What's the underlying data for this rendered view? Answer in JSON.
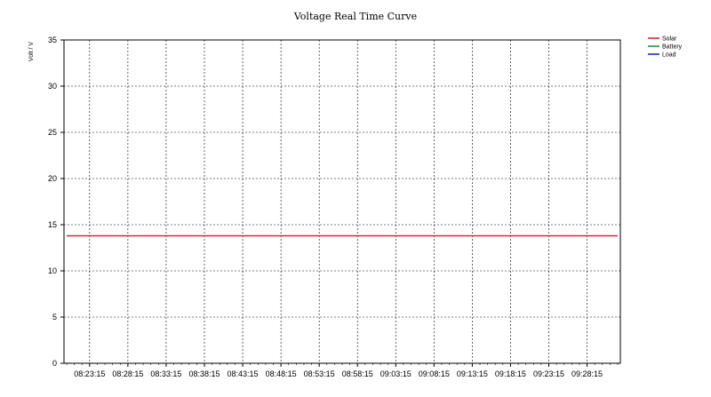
{
  "chart_data": {
    "type": "line",
    "title": "Voltage Real Time Curve",
    "ylabel": "Volt / V",
    "xlabel": "",
    "ylim": [
      0,
      35
    ],
    "y_ticks": [
      0,
      5,
      10,
      15,
      20,
      25,
      30,
      35
    ],
    "x_tick_labels": [
      "08:23:15",
      "08:28:15",
      "08:33:15",
      "08:38:15",
      "08:43:15",
      "08:48:15",
      "08:53:15",
      "08:58:15",
      "09:03:15",
      "09:08:15",
      "09:13:15",
      "09:18:15",
      "09:23:15",
      "09:28:15"
    ],
    "grid": true,
    "legend_position": "top-right",
    "x_start_label": "08:20:15",
    "x_step_seconds": 30,
    "x_points": 145,
    "series": [
      {
        "name": "Solar",
        "color": "#e8262b",
        "values": [
          13.8,
          13.8,
          13.8,
          13.8,
          13.8,
          13.8,
          13.8,
          13.8,
          13.8,
          13.8,
          13.8,
          13.8,
          13.8,
          13.8,
          13.8,
          13.8,
          13.8,
          13.8,
          13.8,
          13.8,
          13.8,
          13.8,
          13.8,
          13.8,
          13.8,
          13.8,
          13.8,
          13.8,
          13.8,
          13.8,
          13.8,
          13.8,
          13.8,
          13.8,
          13.8,
          13.8,
          13.8,
          13.8,
          13.8,
          13.8,
          13.8,
          13.8,
          13.8,
          13.8,
          13.8,
          13.8,
          13.8,
          13.8,
          13.8,
          13.8,
          13.8,
          13.8,
          13.8,
          13.8,
          13.8,
          13.8,
          13.8,
          13.8,
          13.8,
          13.8,
          13.8,
          13.8,
          13.8,
          13.8,
          13.8,
          13.8,
          13.8,
          13.8,
          13.8,
          13.8,
          13.8,
          13.8,
          13.8,
          13.8,
          13.8,
          13.8,
          13.8,
          13.8,
          13.8,
          13.8,
          13.8,
          13.8,
          13.8,
          13.8,
          13.8,
          13.8,
          13.8,
          13.8,
          13.8,
          13.8,
          13.8,
          13.8,
          13.8,
          13.8,
          13.8,
          13.8,
          13.8,
          13.8,
          13.8,
          13.8,
          13.8,
          13.8,
          13.8,
          13.8,
          13.8,
          13.8,
          13.8,
          13.8,
          13.8,
          13.8,
          13.8,
          13.8,
          13.8,
          13.8,
          13.8,
          13.8,
          13.8,
          13.8,
          13.8,
          13.8,
          13.8,
          13.8,
          13.8,
          13.8,
          13.8,
          13.8,
          13.8,
          13.8,
          13.8,
          13.8,
          13.8,
          13.8,
          13.8,
          13.8,
          13.8,
          13.8,
          13.8,
          13.8,
          13.8,
          13.8,
          13.8,
          13.8,
          13.8,
          13.8,
          13.8
        ]
      },
      {
        "name": "Battery",
        "color": "#1f9a3a",
        "values": []
      },
      {
        "name": "Load",
        "color": "#1b2fb8",
        "values": []
      }
    ]
  }
}
